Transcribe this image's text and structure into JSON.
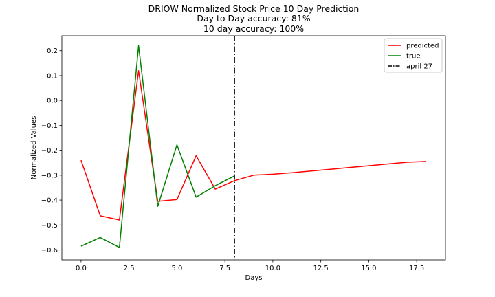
{
  "chart_data": {
    "type": "line",
    "title": "DRIOW Normalized Stock Price 10 Day Prediction",
    "subtitle_lines": [
      "Day to Day accuracy: 81%",
      "10 day accuracy: 100%"
    ],
    "xlabel": "Days",
    "ylabel": "Normalized Values",
    "xlim": [
      -1.0,
      19.0
    ],
    "ylim": [
      -0.64,
      0.26
    ],
    "xticks": [
      0.0,
      2.5,
      5.0,
      7.5,
      10.0,
      12.5,
      15.0,
      17.5
    ],
    "xtick_labels": [
      "0.0",
      "2.5",
      "5.0",
      "7.5",
      "10.0",
      "12.5",
      "15.0",
      "17.5"
    ],
    "yticks": [
      -0.6,
      -0.5,
      -0.4,
      -0.3,
      -0.2,
      -0.1,
      0.0,
      0.1,
      0.2
    ],
    "ytick_labels": [
      "−0.6",
      "−0.5",
      "−0.4",
      "−0.3",
      "−0.2",
      "−0.1",
      "0.0",
      "0.1",
      "0.2"
    ],
    "grid": false,
    "legend_position": "top-right",
    "series": [
      {
        "name": "predicted",
        "color": "#ff0000",
        "style": "solid",
        "x": [
          0,
          1,
          2,
          3,
          4,
          5,
          6,
          7,
          8,
          9,
          10,
          11,
          12,
          13,
          14,
          15,
          16,
          17,
          18
        ],
        "y": [
          -0.24,
          -0.463,
          -0.48,
          0.12,
          -0.405,
          -0.398,
          -0.222,
          -0.356,
          -0.322,
          -0.3,
          -0.296,
          -0.29,
          -0.283,
          -0.276,
          -0.269,
          -0.262,
          -0.255,
          -0.248,
          -0.245
        ]
      },
      {
        "name": "true",
        "color": "#008000",
        "style": "solid",
        "x": [
          0,
          1,
          2,
          3,
          4,
          5,
          6,
          7,
          8
        ],
        "y": [
          -0.585,
          -0.55,
          -0.59,
          0.22,
          -0.425,
          -0.178,
          -0.388,
          -0.342,
          -0.303
        ]
      }
    ],
    "vline": {
      "name": "april 27",
      "x": 8,
      "color": "#000000",
      "style": "dashdot"
    }
  }
}
